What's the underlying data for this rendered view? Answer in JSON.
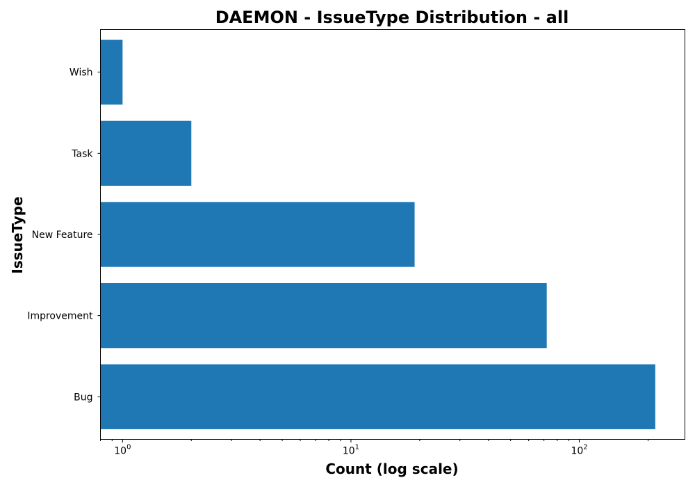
{
  "chart_data": {
    "type": "bar",
    "orientation": "horizontal",
    "title": "DAEMON - IssueType Distribution - all",
    "xlabel": "Count (log scale)",
    "ylabel": "IssueType",
    "x_scale": "log",
    "xlim": [
      0.8,
      290
    ],
    "x_tick_base": "10",
    "x_ticks": [
      {
        "value": 1,
        "exponent": "0"
      },
      {
        "value": 10,
        "exponent": "1"
      },
      {
        "value": 100,
        "exponent": "2"
      }
    ],
    "categories": [
      "Bug",
      "Improvement",
      "New Feature",
      "Task",
      "Wish"
    ],
    "values": [
      215,
      72,
      19,
      2,
      1
    ],
    "bar_color": "#1f77b4",
    "grid": false,
    "legend": "none"
  }
}
